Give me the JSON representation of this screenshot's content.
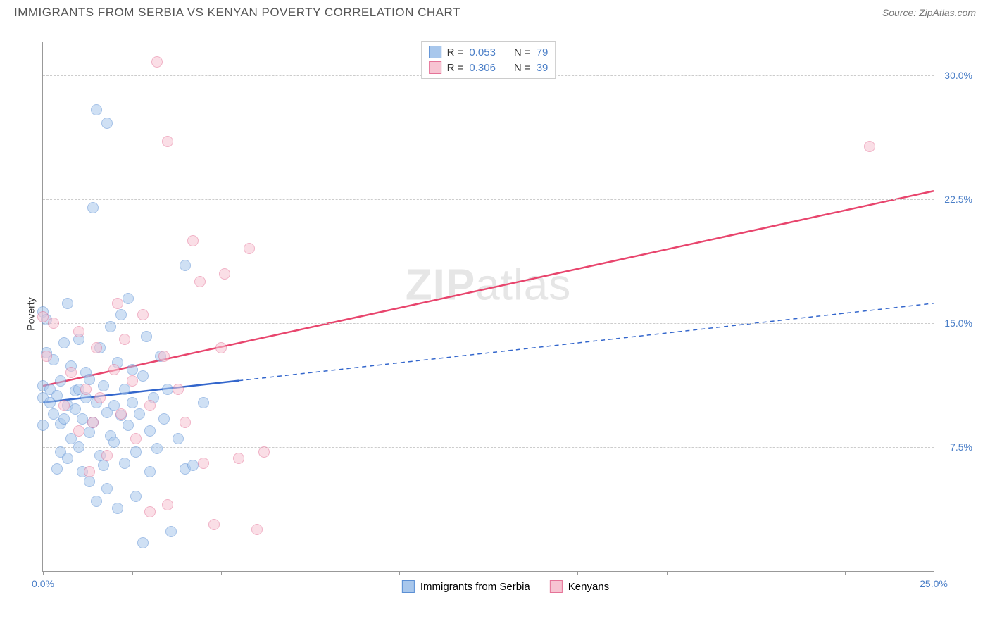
{
  "header": {
    "title": "IMMIGRANTS FROM SERBIA VS KENYAN POVERTY CORRELATION CHART",
    "source": "Source: ZipAtlas.com"
  },
  "chart": {
    "type": "scatter",
    "ylabel": "Poverty",
    "watermark_a": "ZIP",
    "watermark_b": "atlas",
    "background_color": "#ffffff",
    "grid_color": "#cccccc",
    "axis_color": "#999999",
    "tick_label_color": "#4a7ec7",
    "xlim": [
      0,
      25
    ],
    "ylim": [
      0,
      32
    ],
    "xticks_major": [
      0,
      25
    ],
    "xticks_minor": [
      2.5,
      5,
      7.5,
      10,
      12.5,
      15,
      17.5,
      20,
      22.5
    ],
    "yticks": [
      7.5,
      15,
      22.5,
      30
    ],
    "xtick_labels": {
      "0": "0.0%",
      "25": "25.0%"
    },
    "ytick_labels": {
      "7.5": "7.5%",
      "15": "15.0%",
      "22.5": "22.5%",
      "30": "30.0%"
    },
    "point_radius": 8,
    "point_opacity": 0.55,
    "series": [
      {
        "id": "serbia",
        "label": "Immigrants from Serbia",
        "fill": "#a8c7ec",
        "stroke": "#5b8fd4",
        "R": "0.053",
        "N": "79",
        "trend": {
          "x1": 0,
          "y1": 10.2,
          "x2": 25,
          "y2": 16.2,
          "solid_until_x": 5.5,
          "color": "#3366cc",
          "width": 2.5,
          "dash": "6 5"
        },
        "points": [
          [
            0,
            10.5
          ],
          [
            0,
            11.2
          ],
          [
            0,
            15.7
          ],
          [
            0,
            8.8
          ],
          [
            0.1,
            13.2
          ],
          [
            0.1,
            15.2
          ],
          [
            0.2,
            11
          ],
          [
            0.2,
            10.2
          ],
          [
            0.3,
            12.8
          ],
          [
            0.3,
            9.5
          ],
          [
            0.4,
            10.6
          ],
          [
            0.4,
            6.2
          ],
          [
            0.5,
            8.9
          ],
          [
            0.5,
            11.5
          ],
          [
            0.5,
            7.2
          ],
          [
            0.6,
            13.8
          ],
          [
            0.6,
            9.2
          ],
          [
            0.7,
            10.0
          ],
          [
            0.7,
            16.2
          ],
          [
            0.7,
            6.8
          ],
          [
            0.8,
            12.4
          ],
          [
            0.8,
            8.0
          ],
          [
            0.9,
            9.8
          ],
          [
            0.9,
            10.9
          ],
          [
            1.0,
            11.0
          ],
          [
            1.0,
            7.5
          ],
          [
            1.0,
            14.0
          ],
          [
            1.1,
            9.2
          ],
          [
            1.1,
            6.0
          ],
          [
            1.2,
            10.5
          ],
          [
            1.2,
            12.0
          ],
          [
            1.3,
            8.4
          ],
          [
            1.3,
            11.6
          ],
          [
            1.3,
            5.4
          ],
          [
            1.4,
            22.0
          ],
          [
            1.4,
            9.0
          ],
          [
            1.5,
            4.2
          ],
          [
            1.5,
            10.2
          ],
          [
            1.5,
            27.9
          ],
          [
            1.6,
            13.5
          ],
          [
            1.6,
            7.0
          ],
          [
            1.7,
            11.2
          ],
          [
            1.7,
            6.4
          ],
          [
            1.8,
            27.1
          ],
          [
            1.8,
            9.6
          ],
          [
            1.8,
            5.0
          ],
          [
            1.9,
            14.8
          ],
          [
            1.9,
            8.2
          ],
          [
            2.0,
            10.0
          ],
          [
            2.0,
            7.8
          ],
          [
            2.1,
            12.6
          ],
          [
            2.1,
            3.8
          ],
          [
            2.2,
            15.5
          ],
          [
            2.2,
            9.4
          ],
          [
            2.3,
            11.0
          ],
          [
            2.3,
            6.5
          ],
          [
            2.4,
            16.5
          ],
          [
            2.4,
            8.8
          ],
          [
            2.5,
            10.2
          ],
          [
            2.5,
            12.2
          ],
          [
            2.6,
            7.2
          ],
          [
            2.6,
            4.5
          ],
          [
            2.7,
            9.5
          ],
          [
            2.8,
            11.8
          ],
          [
            2.8,
            1.7
          ],
          [
            2.9,
            14.2
          ],
          [
            3.0,
            6.0
          ],
          [
            3.0,
            8.5
          ],
          [
            3.1,
            10.5
          ],
          [
            3.2,
            7.4
          ],
          [
            3.3,
            13.0
          ],
          [
            3.4,
            9.2
          ],
          [
            3.5,
            11.0
          ],
          [
            3.6,
            2.4
          ],
          [
            3.8,
            8.0
          ],
          [
            4.0,
            6.2
          ],
          [
            4.0,
            18.5
          ],
          [
            4.2,
            6.4
          ],
          [
            4.5,
            10.2
          ]
        ]
      },
      {
        "id": "kenya",
        "label": "Kenyans",
        "fill": "#f7c4d2",
        "stroke": "#e57398",
        "R": "0.306",
        "N": "39",
        "trend": {
          "x1": 0,
          "y1": 11.2,
          "x2": 25,
          "y2": 23.0,
          "solid_until_x": 25,
          "color": "#e8456d",
          "width": 2.5,
          "dash": ""
        },
        "points": [
          [
            0,
            15.4
          ],
          [
            0.1,
            13.0
          ],
          [
            0.3,
            15.0
          ],
          [
            0.6,
            10.0
          ],
          [
            0.8,
            12.0
          ],
          [
            1.0,
            14.5
          ],
          [
            1.0,
            8.5
          ],
          [
            1.2,
            11.0
          ],
          [
            1.3,
            6.0
          ],
          [
            1.4,
            9.0
          ],
          [
            1.5,
            13.5
          ],
          [
            1.6,
            10.5
          ],
          [
            1.8,
            7.0
          ],
          [
            2.0,
            12.2
          ],
          [
            2.1,
            16.2
          ],
          [
            2.2,
            9.5
          ],
          [
            2.3,
            14.0
          ],
          [
            2.5,
            11.5
          ],
          [
            2.6,
            8.0
          ],
          [
            2.8,
            15.5
          ],
          [
            3.0,
            10.0
          ],
          [
            3.0,
            3.6
          ],
          [
            3.2,
            30.8
          ],
          [
            3.4,
            13.0
          ],
          [
            3.5,
            26.0
          ],
          [
            3.5,
            4.0
          ],
          [
            3.8,
            11.0
          ],
          [
            4.0,
            9.0
          ],
          [
            4.2,
            20.0
          ],
          [
            4.4,
            17.5
          ],
          [
            4.5,
            6.5
          ],
          [
            4.8,
            2.8
          ],
          [
            5.0,
            13.5
          ],
          [
            5.1,
            18.0
          ],
          [
            5.5,
            6.8
          ],
          [
            5.8,
            19.5
          ],
          [
            6.0,
            2.5
          ],
          [
            6.2,
            7.2
          ],
          [
            23.2,
            25.7
          ]
        ]
      }
    ],
    "legend_top": {
      "R_label": "R =",
      "N_label": "N ="
    }
  }
}
